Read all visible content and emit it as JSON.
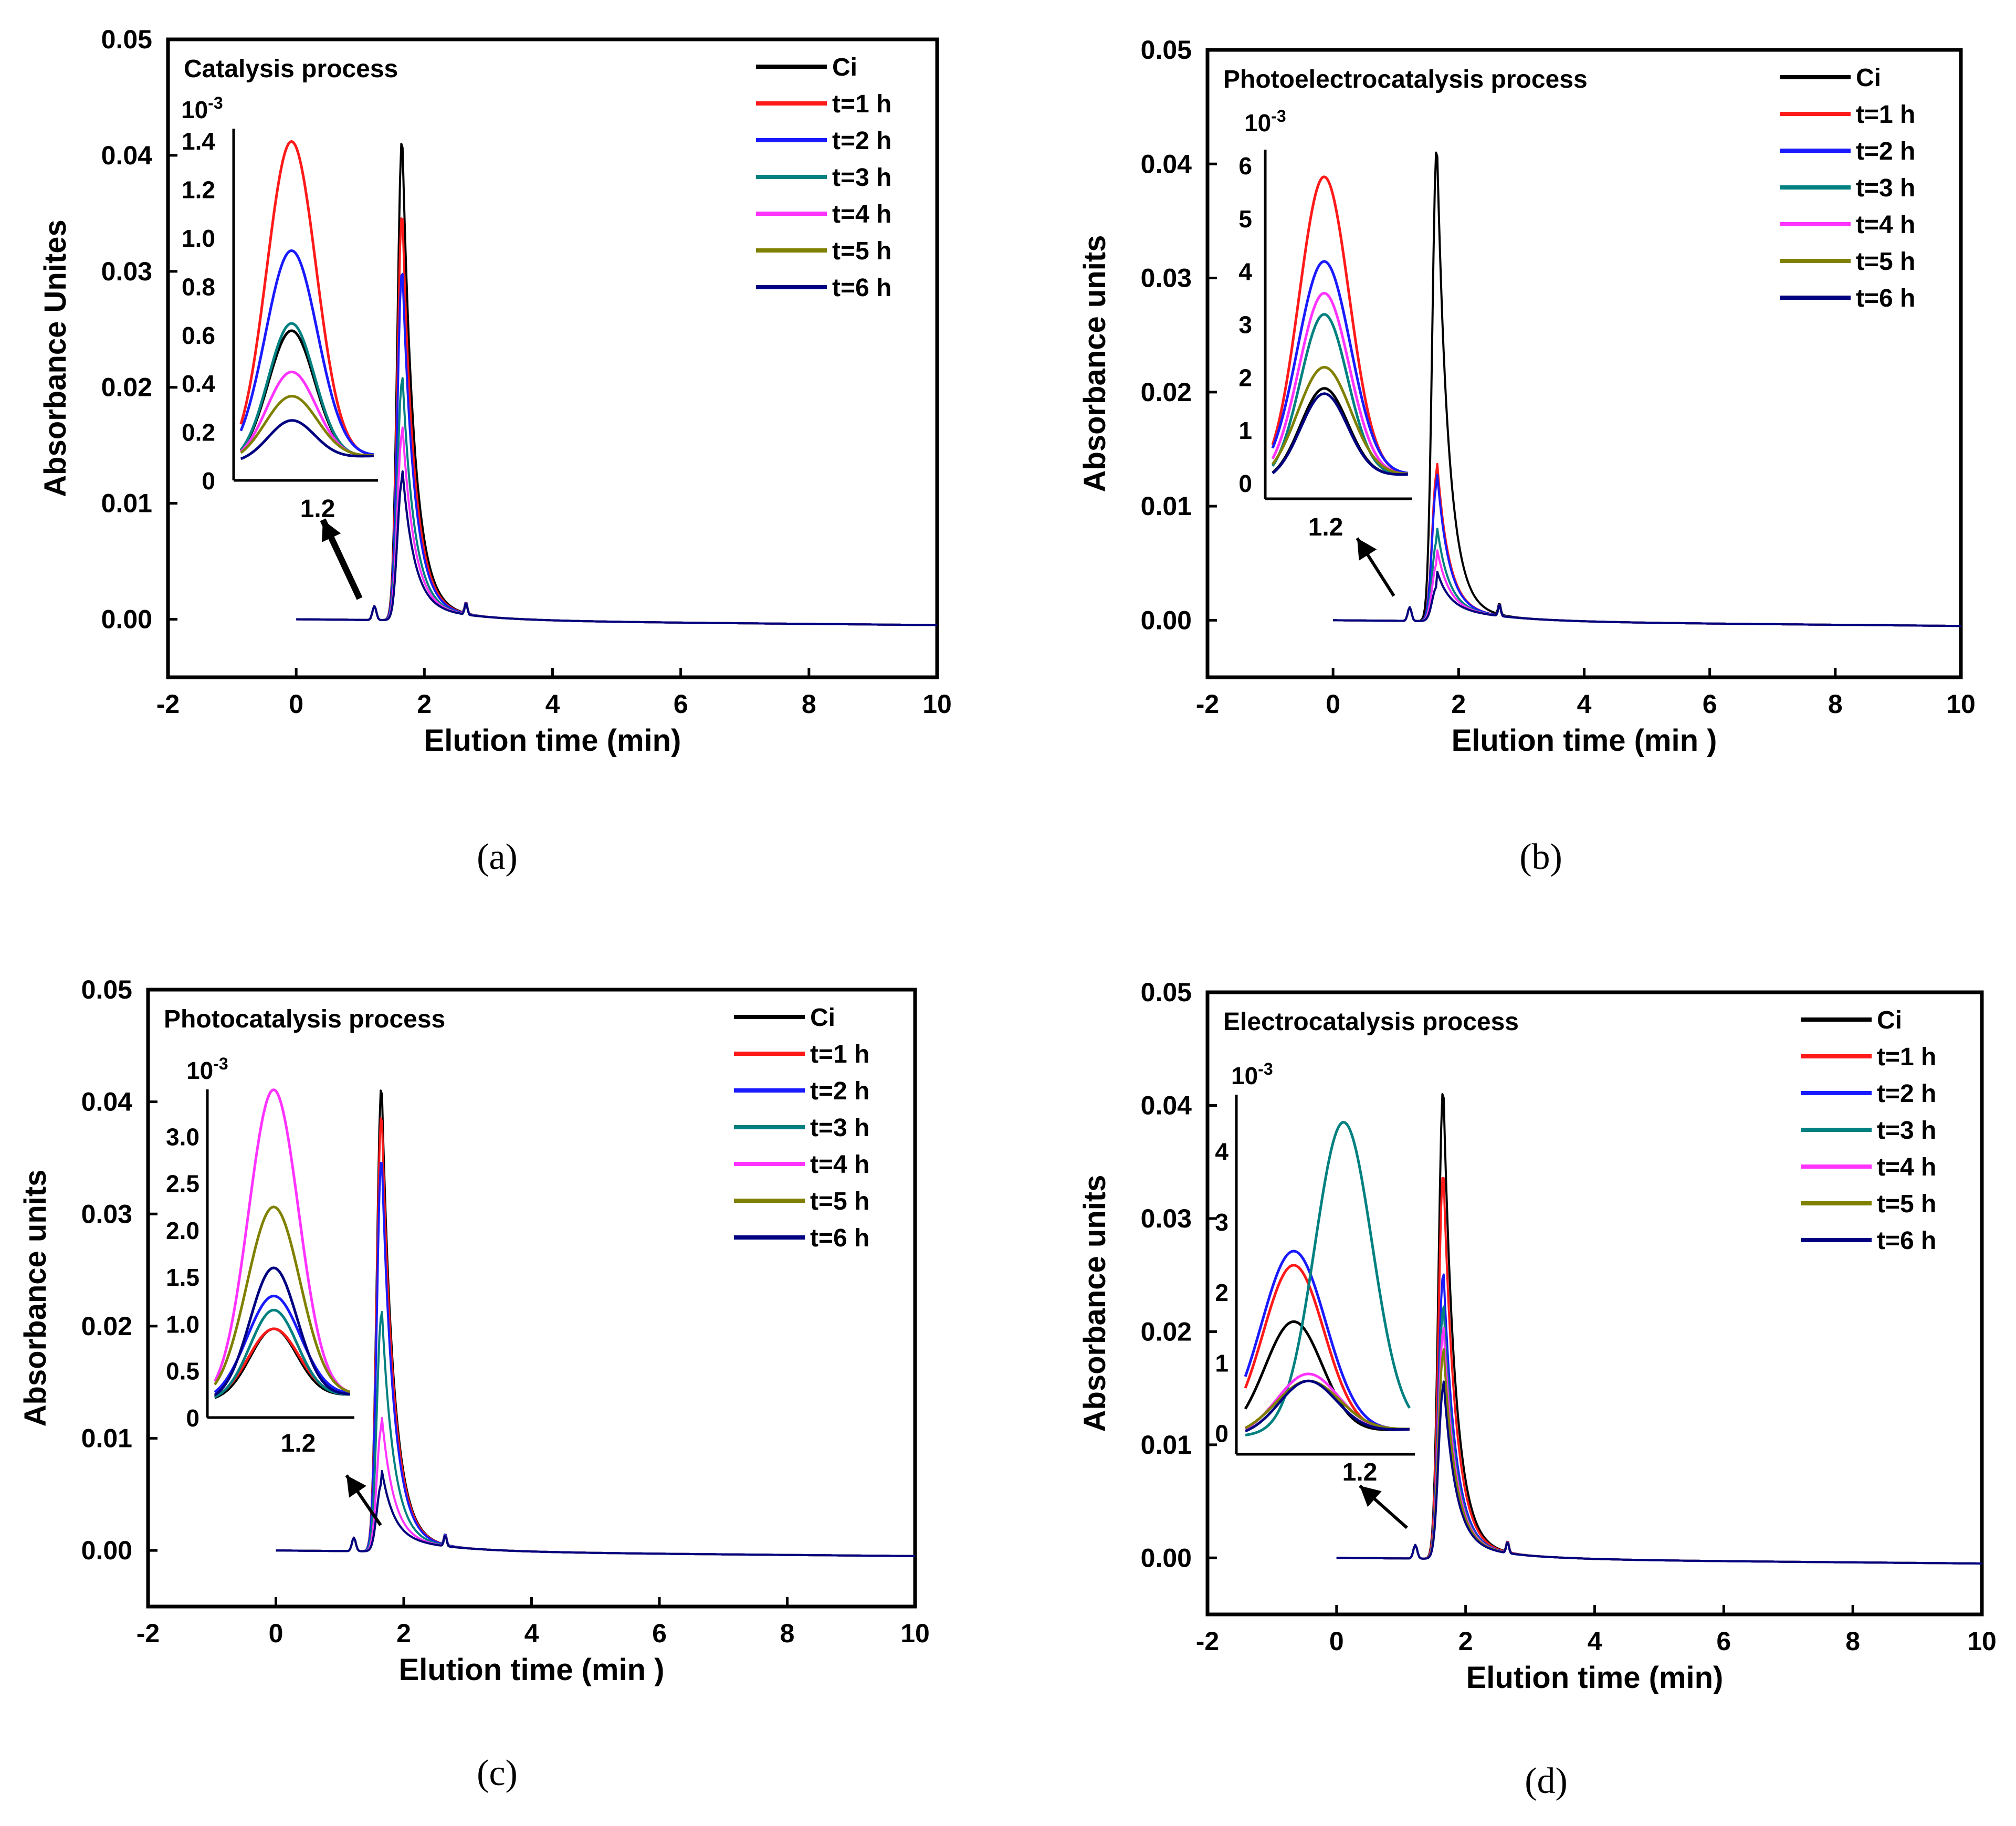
{
  "colors": {
    "Ci": "#000000",
    "t=1 h": "#ff1a1a",
    "t=2 h": "#1a1aff",
    "t=3 h": "#008080",
    "t=4 h": "#ff33ff",
    "t=5 h": "#808000",
    "t=6 h": "#000080"
  },
  "chart_data": [
    {
      "panel": "a",
      "type": "line",
      "caption": "(a)",
      "title": "Catalysis process",
      "xlabel": "Elution time (min)",
      "ylabel": "Absorbance Unites",
      "xlim": [
        -2,
        10
      ],
      "ylim": [
        -0.005,
        0.05
      ],
      "xticks": [
        "-2",
        "0",
        "2",
        "4",
        "6",
        "8",
        "10"
      ],
      "yticks": [
        "0.00",
        "0.01",
        "0.02",
        "0.03",
        "0.04",
        "0.05"
      ],
      "legend": [
        "Ci",
        "t=1 h",
        "t=2 h",
        "t=3 h",
        "t=4 h",
        "t=5 h",
        "t=6 h"
      ],
      "main_peak_heights": [
        0.0415,
        0.035,
        0.03,
        0.0205,
        0.016,
        0.012,
        0.012
      ],
      "inset": {
        "exponent_label": "10-3",
        "exponent_base": "10",
        "exponent_power": "-3",
        "yticks": [
          "0",
          "0.2",
          "0.4",
          "0.6",
          "0.8",
          "1.0",
          "1.2",
          "1.4"
        ],
        "ylim": [
          0,
          1.45
        ],
        "xtick": "1.2",
        "peak_heights": [
          0.62,
          1.4,
          0.95,
          0.65,
          0.45,
          0.35,
          0.25
        ]
      }
    },
    {
      "panel": "b",
      "type": "line",
      "caption": "(b)",
      "title": "Photoelectrocatalysis process",
      "xlabel": "Elution time (min )",
      "ylabel": "Absorbance units",
      "xlim": [
        -2,
        10
      ],
      "ylim": [
        -0.005,
        0.05
      ],
      "xticks": [
        "-2",
        "0",
        "2",
        "4",
        "6",
        "8",
        "10"
      ],
      "yticks": [
        "0.00",
        "0.01",
        "0.02",
        "0.03",
        "0.04",
        "0.05"
      ],
      "legend": [
        "Ci",
        "t=1 h",
        "t=2 h",
        "t=3 h",
        "t=4 h",
        "t=5 h",
        "t=6 h"
      ],
      "main_peak_heights": [
        0.0415,
        0.013,
        0.012,
        0.007,
        0.005,
        0.003,
        0.003
      ],
      "inset": {
        "exponent_label": "10-3",
        "exponent_base": "10",
        "exponent_power": "-3",
        "yticks": [
          "0",
          "1",
          "2",
          "3",
          "4",
          "5",
          "6"
        ],
        "ylim": [
          -0.3,
          6.3
        ],
        "xtick": "1.2",
        "peak_heights": [
          1.8,
          5.8,
          4.2,
          3.2,
          3.6,
          2.2,
          1.7
        ]
      }
    },
    {
      "panel": "c",
      "type": "line",
      "caption": "(c)",
      "title": "Photocatalysis process",
      "xlabel": "Elution time (min )",
      "ylabel": "Absorbance units",
      "xlim": [
        -2,
        10
      ],
      "ylim": [
        -0.005,
        0.05
      ],
      "xticks": [
        "-2",
        "0",
        "2",
        "4",
        "6",
        "8",
        "10"
      ],
      "yticks": [
        "0.00",
        "0.01",
        "0.02",
        "0.03",
        "0.04",
        "0.05"
      ],
      "legend": [
        "Ci",
        "t=1 h",
        "t=2 h",
        "t=3 h",
        "t=4 h",
        "t=5 h",
        "t=6 h"
      ],
      "main_peak_heights": [
        0.0415,
        0.039,
        0.035,
        0.021,
        0.011,
        0.006,
        0.006
      ],
      "inset": {
        "exponent_label": "10-3",
        "exponent_base": "10",
        "exponent_power": "-3",
        "yticks": [
          "0",
          "0.5",
          "1.0",
          "1.5",
          "2.0",
          "2.5",
          "3.0"
        ],
        "ylim": [
          0,
          3.5
        ],
        "xtick": "1.2",
        "peak_heights": [
          0.95,
          0.95,
          1.3,
          1.15,
          3.5,
          2.25,
          1.6
        ]
      }
    },
    {
      "panel": "d",
      "type": "line",
      "caption": "(d)",
      "title": "Electrocatalysis process",
      "xlabel": "Elution time (min)",
      "ylabel": "Absorbance units",
      "xlim": [
        -2,
        10
      ],
      "ylim": [
        -0.005,
        0.05
      ],
      "xticks": [
        "-2",
        "0",
        "2",
        "4",
        "6",
        "8",
        "10"
      ],
      "yticks": [
        "0.00",
        "0.01",
        "0.02",
        "0.03",
        "0.04",
        "0.05"
      ],
      "legend": [
        "Ci",
        "t=1 h",
        "t=2 h",
        "t=3 h",
        "t=4 h",
        "t=5 h",
        "t=6 h"
      ],
      "main_peak_heights": [
        0.0415,
        0.034,
        0.025,
        0.022,
        0.02,
        0.018,
        0.015
      ],
      "inset": {
        "exponent_label": "10-3",
        "exponent_base": "10",
        "exponent_power": "-3",
        "yticks": [
          "0",
          "1",
          "2",
          "3",
          "4"
        ],
        "ylim": [
          -0.3,
          4.8
        ],
        "xtick": "1.2",
        "peak_heights": [
          1.6,
          2.4,
          2.6,
          4.4,
          0.85,
          0.75,
          0.75
        ]
      }
    }
  ]
}
